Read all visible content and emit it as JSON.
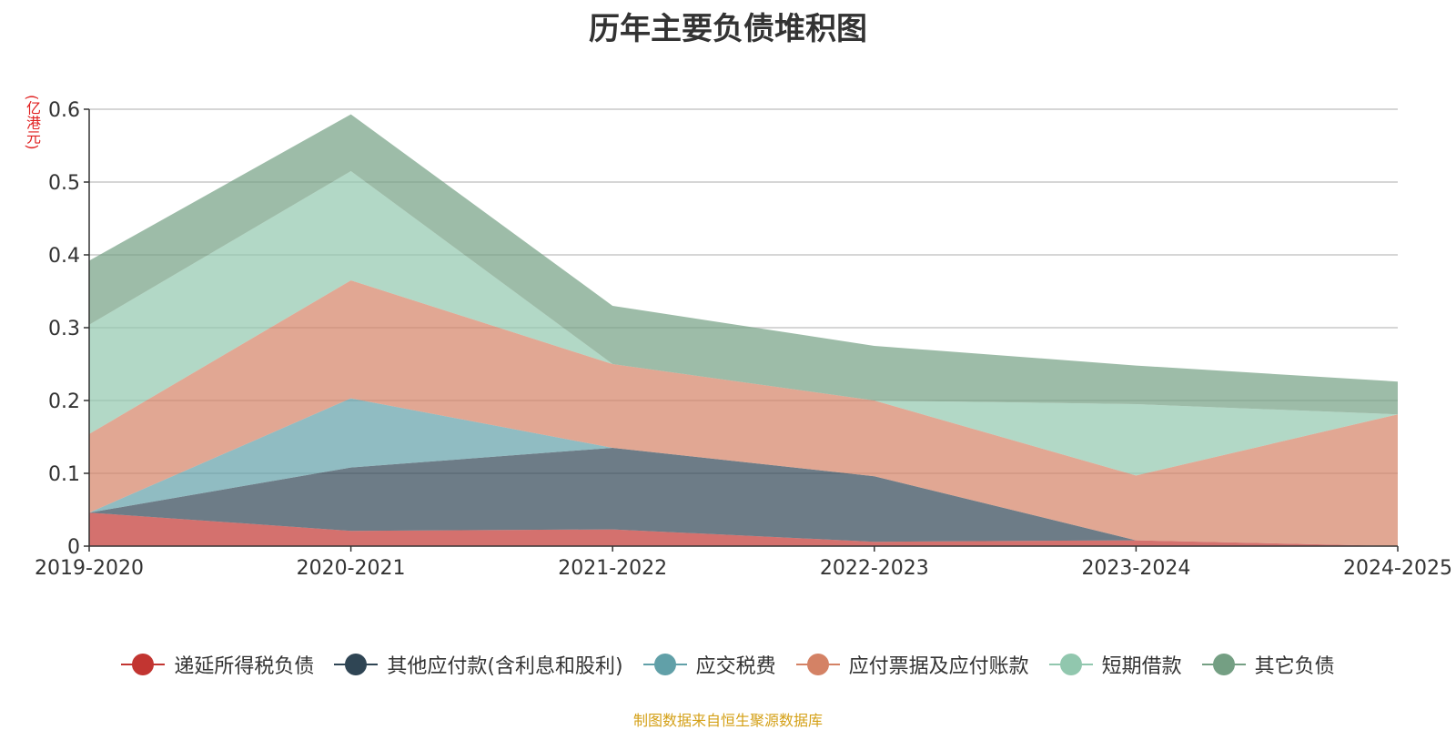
{
  "title": "历年主要负债堆积图",
  "unit": "(亿港元)",
  "source": "制图数据来自恒生聚源数据库",
  "chart_data": {
    "type": "area",
    "stacked": true,
    "categories": [
      "2019-2020",
      "2020-2021",
      "2021-2022",
      "2022-2023",
      "2023-2024",
      "2024-2025"
    ],
    "ylim": [
      0,
      0.6
    ],
    "yticks": [
      0,
      0.1,
      0.2,
      0.3,
      0.4,
      0.5,
      0.6
    ],
    "grid": true,
    "legend_position": "bottom",
    "series": [
      {
        "name": "递延所得税负债",
        "color": "#c23531",
        "values": [
          0.046,
          0.021,
          0.023,
          0.006,
          0.008,
          0.0
        ]
      },
      {
        "name": "其他应付款(含利息和股利)",
        "color": "#2f4554",
        "values": [
          0.0,
          0.087,
          0.112,
          0.09,
          0.0,
          0.0
        ]
      },
      {
        "name": "应交税费",
        "color": "#61a0a8",
        "values": [
          0.0,
          0.095,
          0.0,
          0.0,
          0.0,
          0.0
        ]
      },
      {
        "name": "应付票据及应付账款",
        "color": "#d48265",
        "values": [
          0.108,
          0.162,
          0.115,
          0.104,
          0.089,
          0.181
        ]
      },
      {
        "name": "短期借款",
        "color": "#91c7ae",
        "values": [
          0.15,
          0.15,
          0.0,
          0.0,
          0.098,
          0.0
        ]
      },
      {
        "name": "其它负债",
        "color": "#749f83",
        "values": [
          0.088,
          0.078,
          0.08,
          0.075,
          0.053,
          0.045
        ]
      }
    ]
  }
}
